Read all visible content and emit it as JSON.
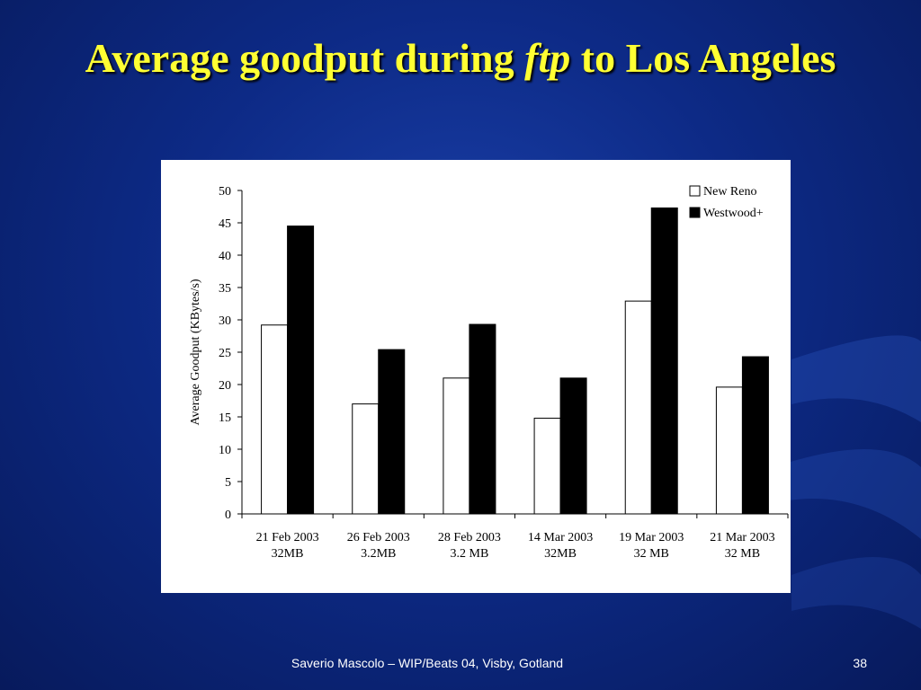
{
  "slide": {
    "title_part1": "Average goodput during ",
    "title_italic": "ftp",
    "title_part2": " to Los Angeles",
    "footer": "Saverio Mascolo   –   WIP/Beats 04,  Visby, Gotland",
    "page_number": "38",
    "colors": {
      "background": "#0d2a86",
      "title": "#ffff33",
      "footer_text": "#ffffff"
    }
  },
  "chart_data": {
    "type": "bar",
    "title": "",
    "xlabel": "",
    "ylabel": "Average Goodput (KBytes/s)",
    "ylim": [
      0,
      50
    ],
    "yticks": [
      0,
      5,
      10,
      15,
      20,
      25,
      30,
      35,
      40,
      45,
      50
    ],
    "grid": false,
    "legend_position": "top-right",
    "categories": [
      [
        "21 Feb 2003",
        "32MB"
      ],
      [
        "26 Feb 2003",
        "3.2MB"
      ],
      [
        "28 Feb 2003",
        "3.2 MB"
      ],
      [
        "14 Mar 2003",
        "32MB"
      ],
      [
        "19 Mar 2003",
        "32 MB"
      ],
      [
        "21 Mar 2003",
        "32 MB"
      ]
    ],
    "series": [
      {
        "name": "New Reno",
        "color": "#ffffff",
        "values": [
          29.2,
          17.0,
          21.0,
          14.8,
          32.9,
          19.6
        ]
      },
      {
        "name": "Westwood+",
        "color": "#000000",
        "values": [
          44.5,
          25.4,
          29.3,
          21.0,
          47.3,
          24.3
        ]
      }
    ]
  }
}
